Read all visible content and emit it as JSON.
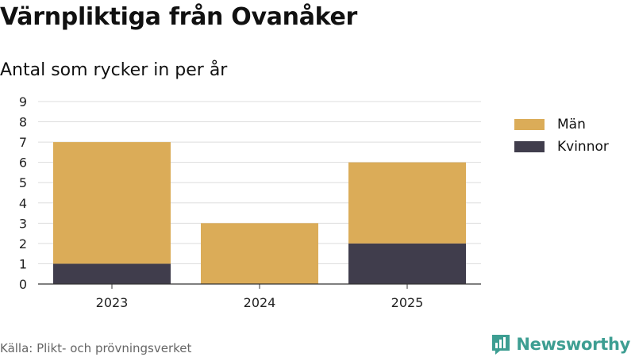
{
  "title": "Värnpliktiga från Ovanåker",
  "subtitle": "Antal som rycker in per år",
  "source": "Källa: Plikt- och prövningsverket",
  "brand": "Newsworthy",
  "colors": {
    "men": "#dbac58",
    "women": "#403d4c",
    "grid": "#dddddd",
    "brand": "#3d9e92"
  },
  "chart_data": {
    "type": "bar",
    "stacked": true,
    "title": "Värnpliktiga från Ovanåker",
    "subtitle": "Antal som rycker in per år",
    "categories": [
      "2023",
      "2024",
      "2025"
    ],
    "series": [
      {
        "name": "Kvinnor",
        "values": [
          1,
          0,
          2
        ],
        "color": "#403d4c"
      },
      {
        "name": "Män",
        "values": [
          6,
          3,
          4
        ],
        "color": "#dbac58"
      }
    ],
    "ylim": [
      0,
      9
    ],
    "yticks": [
      "0",
      "1",
      "2",
      "3",
      "4",
      "5",
      "6",
      "7",
      "8",
      "9"
    ],
    "grid": true,
    "legend": {
      "position": "right",
      "entries": [
        "Män",
        "Kvinnor"
      ]
    },
    "xlabel": "",
    "ylabel": ""
  }
}
